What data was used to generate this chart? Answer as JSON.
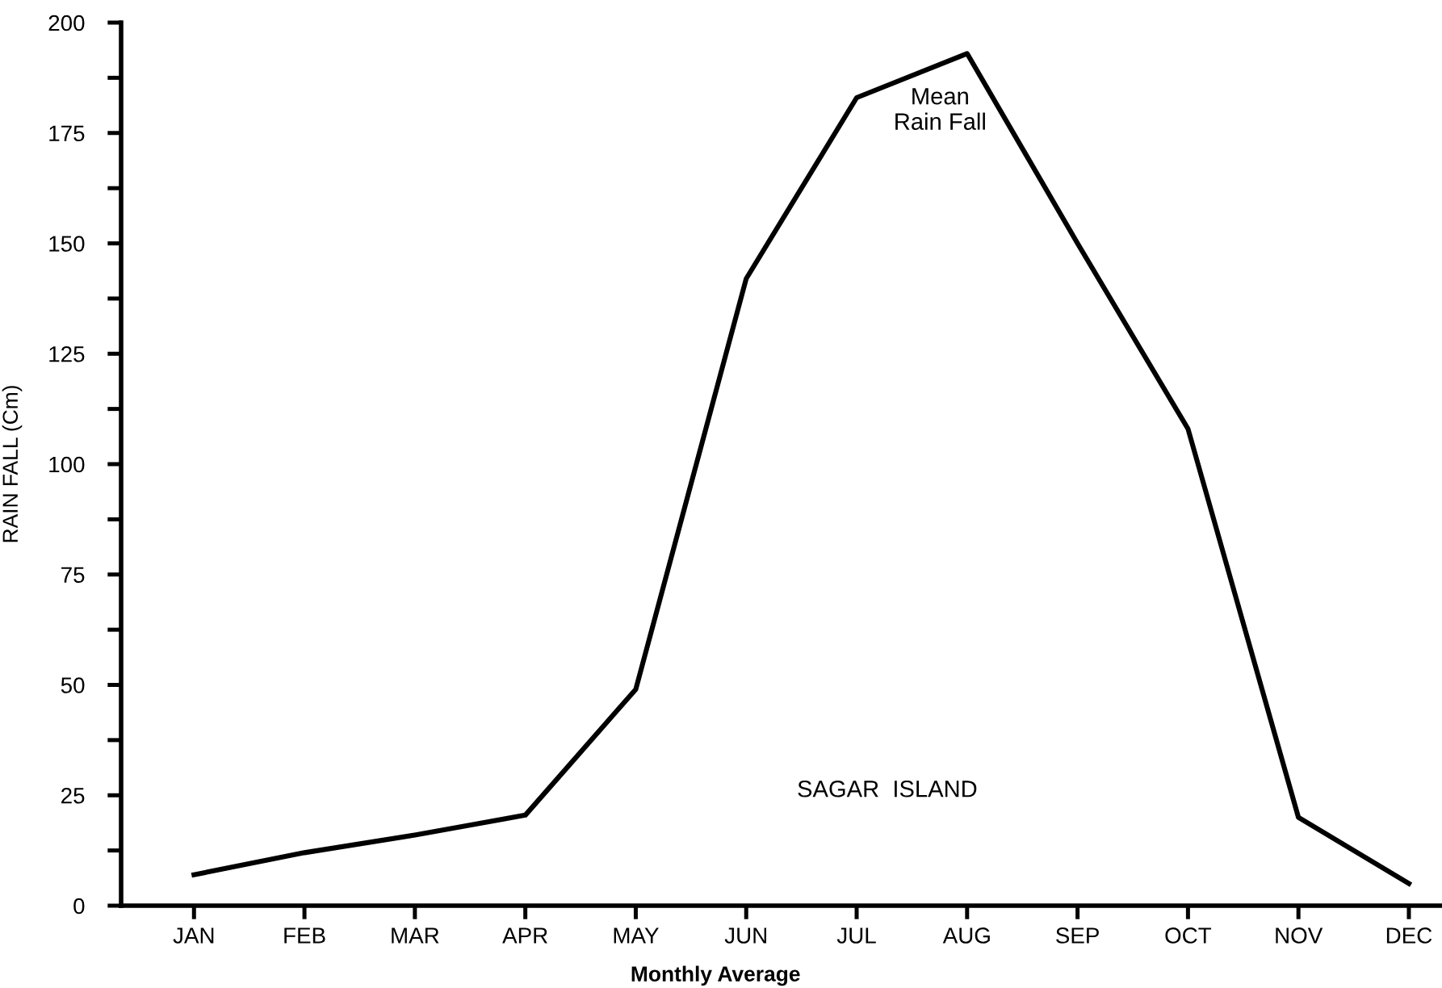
{
  "chart_data": {
    "type": "line",
    "xlabel": "Monthly Average",
    "ylabel": "RAIN FALL (Cm)",
    "categories": [
      "JAN",
      "FEB",
      "MAR",
      "APR",
      "MAY",
      "JUN",
      "JUL",
      "AUG",
      "SEP",
      "OCT",
      "NOV",
      "DEC"
    ],
    "series": [
      {
        "color": "#000000",
        "values": [
          7,
          12,
          16,
          20.5,
          49,
          142,
          183,
          193,
          150,
          108,
          20,
          5
        ]
      }
    ],
    "ylim": [
      0,
      200
    ],
    "yticks": [
      0,
      {
        "value": 12.5,
        "label": null
      },
      25,
      {
        "value": 37.5,
        "label": null
      },
      50,
      {
        "value": 62.5,
        "label": null
      },
      75,
      {
        "value": 87.5,
        "label": null
      },
      100,
      {
        "value": 112.5,
        "label": null
      },
      125,
      {
        "value": 137.5,
        "label": null
      },
      150,
      {
        "value": 162.5,
        "label": null
      },
      175,
      {
        "value": 187.5,
        "label": null
      },
      200
    ],
    "annotations": [
      "Mean\nRain Fall",
      "SAGAR  ISLAND"
    ],
    "grid": false,
    "legend": false,
    "marker": "none",
    "line_style": "solid"
  }
}
